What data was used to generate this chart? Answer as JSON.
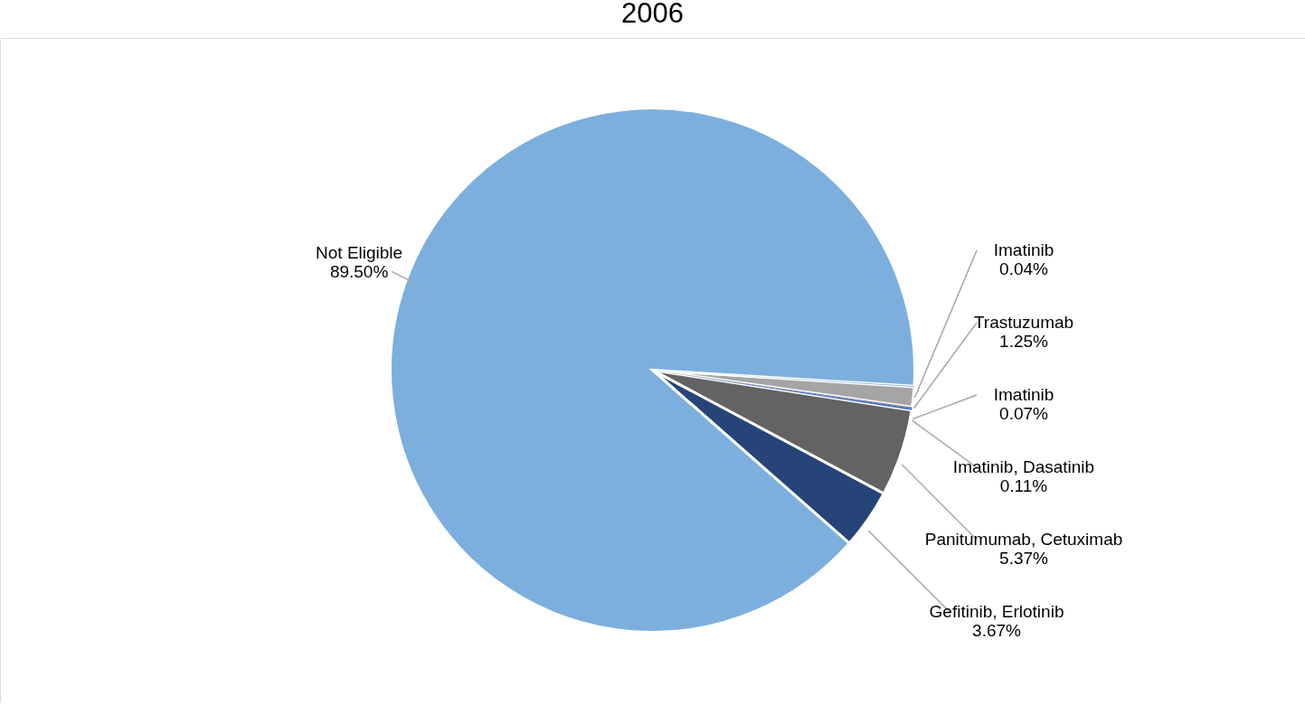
{
  "chart_data": {
    "type": "pie",
    "title": "2006",
    "categories": [
      "Imatinib",
      "Trastuzumab",
      "Imatinib",
      "Imatinib, Dasatinib",
      "Panitumumab, Cetuximab",
      "Gefitinib, Erlotinib",
      "Not Eligible"
    ],
    "values": [
      0.04,
      1.25,
      0.07,
      0.11,
      5.37,
      3.67,
      89.5
    ],
    "value_labels": [
      "0.04%",
      "1.25%",
      "0.07%",
      "0.11%",
      "5.37%",
      "3.67%",
      "89.50%"
    ],
    "colors": [
      "#5b9bd5",
      "#a5a5a5",
      "#7f7f7f",
      "#4472c4",
      "#636363",
      "#264478",
      "#7cafdd"
    ],
    "legend": false
  }
}
